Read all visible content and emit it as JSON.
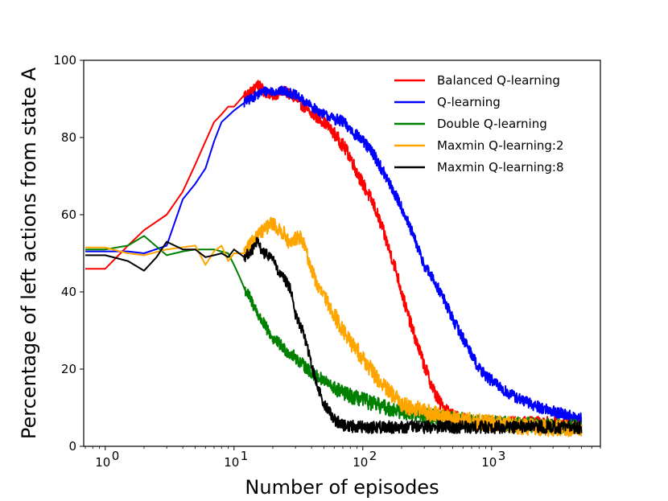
{
  "chart_data": {
    "type": "line",
    "title": "",
    "xlabel": "Number of episodes",
    "ylabel": "Percentage of left actions from state A",
    "xscale": "log",
    "xlim": [
      0.68,
      7000
    ],
    "ylim": [
      0,
      100
    ],
    "x_ticks": [
      {
        "value": 1,
        "base": "10",
        "exp": "0"
      },
      {
        "value": 10,
        "base": "10",
        "exp": "1"
      },
      {
        "value": 100,
        "base": "10",
        "exp": "2"
      },
      {
        "value": 1000,
        "base": "10",
        "exp": "3"
      }
    ],
    "y_ticks": [
      0,
      20,
      40,
      60,
      80,
      100
    ],
    "legend_position": "top-right",
    "series": [
      {
        "name": "Balanced Q-learning",
        "color": "#ff0000",
        "points": [
          [
            0.7,
            46
          ],
          [
            1,
            46
          ],
          [
            1.5,
            52
          ],
          [
            2,
            56
          ],
          [
            3,
            60
          ],
          [
            4,
            66
          ],
          [
            5,
            73
          ],
          [
            6,
            79
          ],
          [
            7,
            84
          ],
          [
            8,
            86
          ],
          [
            9,
            88
          ],
          [
            10,
            88
          ],
          [
            12,
            91
          ],
          [
            14,
            92
          ],
          [
            15,
            94
          ],
          [
            17,
            92
          ],
          [
            20,
            91
          ],
          [
            25,
            92
          ],
          [
            30,
            90
          ],
          [
            40,
            86
          ],
          [
            50,
            84
          ],
          [
            60,
            81
          ],
          [
            70,
            78
          ],
          [
            80,
            75
          ],
          [
            90,
            71
          ],
          [
            100,
            68
          ],
          [
            120,
            63
          ],
          [
            140,
            57
          ],
          [
            160,
            51
          ],
          [
            180,
            46
          ],
          [
            200,
            40
          ],
          [
            220,
            35
          ],
          [
            250,
            29
          ],
          [
            300,
            21
          ],
          [
            350,
            15
          ],
          [
            400,
            11
          ],
          [
            500,
            8
          ],
          [
            700,
            6
          ],
          [
            1000,
            6
          ],
          [
            2000,
            6
          ],
          [
            3000,
            6
          ],
          [
            5000,
            6
          ]
        ],
        "noise": 1.6
      },
      {
        "name": "Q-learning",
        "color": "#0000ff",
        "points": [
          [
            0.7,
            50.5
          ],
          [
            1,
            50.5
          ],
          [
            1.5,
            50.5
          ],
          [
            2,
            50
          ],
          [
            3,
            52
          ],
          [
            4,
            64
          ],
          [
            5,
            68
          ],
          [
            6,
            72
          ],
          [
            7,
            79
          ],
          [
            8,
            84
          ],
          [
            10,
            87
          ],
          [
            12,
            89
          ],
          [
            15,
            91
          ],
          [
            17,
            92
          ],
          [
            20,
            92
          ],
          [
            25,
            92
          ],
          [
            30,
            91
          ],
          [
            40,
            88
          ],
          [
            50,
            86
          ],
          [
            70,
            84
          ],
          [
            100,
            79
          ],
          [
            120,
            76
          ],
          [
            150,
            70
          ],
          [
            200,
            62
          ],
          [
            250,
            54
          ],
          [
            300,
            47
          ],
          [
            400,
            40
          ],
          [
            500,
            33
          ],
          [
            600,
            28
          ],
          [
            700,
            24
          ],
          [
            800,
            20
          ],
          [
            1000,
            17
          ],
          [
            1300,
            14
          ],
          [
            1700,
            12
          ],
          [
            2000,
            11
          ],
          [
            3000,
            9
          ],
          [
            5000,
            7
          ]
        ],
        "noise": 1.4
      },
      {
        "name": "Double Q-learning",
        "color": "#008000",
        "points": [
          [
            0.7,
            51
          ],
          [
            1,
            51
          ],
          [
            1.5,
            52
          ],
          [
            2,
            54.5
          ],
          [
            3,
            49.5
          ],
          [
            4,
            50.5
          ],
          [
            5,
            51
          ],
          [
            7,
            51
          ],
          [
            9,
            50
          ],
          [
            10,
            47
          ],
          [
            11,
            44
          ],
          [
            12,
            41
          ],
          [
            14,
            37
          ],
          [
            16,
            33
          ],
          [
            20,
            28
          ],
          [
            25,
            25
          ],
          [
            30,
            23
          ],
          [
            40,
            19
          ],
          [
            50,
            17
          ],
          [
            60,
            15
          ],
          [
            80,
            13
          ],
          [
            100,
            12
          ],
          [
            150,
            10
          ],
          [
            200,
            9
          ],
          [
            300,
            8
          ],
          [
            500,
            7
          ],
          [
            1000,
            6
          ],
          [
            2000,
            5.5
          ],
          [
            5000,
            5
          ]
        ],
        "noise": 1.8
      },
      {
        "name": "Maxmin Q-learning:2",
        "color": "#ffa500",
        "points": [
          [
            0.7,
            51.5
          ],
          [
            1,
            51.5
          ],
          [
            1.5,
            50
          ],
          [
            2,
            49.5
          ],
          [
            3,
            51
          ],
          [
            5,
            52
          ],
          [
            6,
            47
          ],
          [
            7,
            50.5
          ],
          [
            8,
            52
          ],
          [
            9,
            48
          ],
          [
            10,
            50
          ],
          [
            12,
            50
          ],
          [
            15,
            54.5
          ],
          [
            17,
            56
          ],
          [
            20,
            58
          ],
          [
            22,
            56
          ],
          [
            25,
            55
          ],
          [
            27,
            52
          ],
          [
            30,
            54
          ],
          [
            33,
            54
          ],
          [
            35,
            52
          ],
          [
            40,
            46
          ],
          [
            45,
            41
          ],
          [
            50,
            39
          ],
          [
            60,
            34
          ],
          [
            70,
            30
          ],
          [
            80,
            27
          ],
          [
            100,
            23
          ],
          [
            120,
            19
          ],
          [
            150,
            15
          ],
          [
            200,
            11
          ],
          [
            300,
            9
          ],
          [
            500,
            7
          ],
          [
            1000,
            6
          ],
          [
            2000,
            5
          ],
          [
            5000,
            4.5
          ]
        ],
        "noise": 2.0
      },
      {
        "name": "Maxmin Q-learning:8",
        "color": "#000000",
        "points": [
          [
            0.7,
            49.5
          ],
          [
            1,
            49.5
          ],
          [
            1.5,
            48
          ],
          [
            2,
            45.5
          ],
          [
            2.5,
            49
          ],
          [
            3,
            53
          ],
          [
            4,
            51
          ],
          [
            5,
            51
          ],
          [
            6,
            49
          ],
          [
            7,
            49.5
          ],
          [
            8,
            50
          ],
          [
            9,
            49
          ],
          [
            10,
            51
          ],
          [
            12,
            49
          ],
          [
            14,
            51
          ],
          [
            15,
            53
          ],
          [
            17,
            50
          ],
          [
            20,
            49
          ],
          [
            22,
            45
          ],
          [
            25,
            43
          ],
          [
            28,
            40
          ],
          [
            30,
            34
          ],
          [
            35,
            29
          ],
          [
            40,
            21
          ],
          [
            45,
            15
          ],
          [
            50,
            11
          ],
          [
            55,
            9
          ],
          [
            60,
            7
          ],
          [
            70,
            5.5
          ],
          [
            100,
            5
          ],
          [
            200,
            5
          ],
          [
            500,
            5
          ],
          [
            1000,
            5
          ],
          [
            2000,
            5
          ],
          [
            5000,
            5
          ]
        ],
        "noise": 1.5
      }
    ]
  }
}
